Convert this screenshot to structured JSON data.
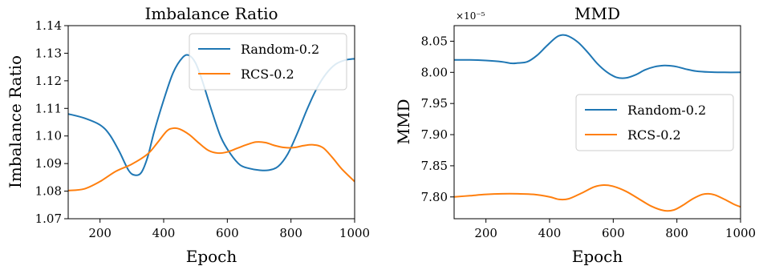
{
  "chart_data": [
    {
      "type": "line",
      "title": "Imbalance Ratio",
      "xlabel": "Epoch",
      "ylabel": "Imbalance Ratio",
      "xlim": [
        100,
        1000
      ],
      "ylim": [
        1.07,
        1.14
      ],
      "xticks": [
        200,
        400,
        600,
        800,
        1000
      ],
      "xtick_labels": [
        "200",
        "400",
        "600",
        "800",
        "1000"
      ],
      "yticks": [
        1.07,
        1.08,
        1.09,
        1.1,
        1.11,
        1.12,
        1.13,
        1.14
      ],
      "ytick_labels": [
        "1.07",
        "1.08",
        "1.09",
        "1.10",
        "1.11",
        "1.12",
        "1.13",
        "1.14"
      ],
      "legend_position": "top-right",
      "series": [
        {
          "name": "Random-0.2",
          "color": "#1f77b4",
          "x": [
            100,
            150,
            200,
            230,
            260,
            290,
            310,
            330,
            350,
            370,
            400,
            430,
            460,
            480,
            500,
            520,
            550,
            580,
            610,
            640,
            670,
            700,
            730,
            760,
            790,
            820,
            850,
            880,
            910,
            940,
            970,
            1000
          ],
          "y": [
            1.108,
            1.1065,
            1.104,
            1.1005,
            1.0945,
            1.0875,
            1.0858,
            1.0868,
            1.0925,
            1.1015,
            1.113,
            1.123,
            1.1285,
            1.1292,
            1.1265,
            1.1205,
            1.1095,
            1.0995,
            1.0935,
            1.0895,
            1.0882,
            1.0876,
            1.0876,
            1.089,
            1.0935,
            1.101,
            1.1095,
            1.117,
            1.1225,
            1.126,
            1.1275,
            1.128
          ]
        },
        {
          "name": "RCS-0.2",
          "color": "#ff7f0e",
          "x": [
            100,
            150,
            200,
            250,
            300,
            350,
            380,
            410,
            430,
            450,
            480,
            510,
            540,
            570,
            600,
            630,
            660,
            690,
            720,
            750,
            780,
            810,
            840,
            870,
            900,
            930,
            960,
            1000
          ],
          "y": [
            1.0802,
            1.0808,
            1.0835,
            1.0872,
            1.0898,
            1.0935,
            1.0975,
            1.1018,
            1.1028,
            1.1025,
            1.1005,
            1.0975,
            1.0948,
            1.0938,
            1.0942,
            1.0955,
            1.0968,
            1.0978,
            1.0976,
            1.0965,
            1.0958,
            1.0958,
            1.0965,
            1.0968,
            1.0958,
            1.0922,
            1.088,
            1.0835
          ]
        }
      ]
    },
    {
      "type": "line",
      "title": "MMD",
      "xlabel": "Epoch",
      "ylabel": "MMD",
      "y_offset_label": "×10⁻⁵",
      "xlim": [
        100,
        1000
      ],
      "ylim": [
        7.765,
        8.075
      ],
      "xticks": [
        200,
        400,
        600,
        800,
        1000
      ],
      "xtick_labels": [
        "200",
        "400",
        "600",
        "800",
        "1000"
      ],
      "yticks": [
        7.8,
        7.85,
        7.9,
        7.95,
        8.0,
        8.05
      ],
      "ytick_labels": [
        "7.80",
        "7.85",
        "7.90",
        "7.95",
        "8.00",
        "8.05"
      ],
      "legend_position": "center-right",
      "series": [
        {
          "name": "Random-0.2",
          "color": "#1f77b4",
          "x": [
            100,
            150,
            200,
            250,
            280,
            300,
            330,
            360,
            390,
            420,
            440,
            460,
            490,
            520,
            550,
            580,
            610,
            640,
            670,
            700,
            730,
            760,
            780,
            800,
            830,
            860,
            900,
            950,
            1000
          ],
          "y": [
            8.02,
            8.02,
            8.019,
            8.017,
            8.0145,
            8.015,
            8.017,
            8.027,
            8.042,
            8.056,
            8.06,
            8.058,
            8.048,
            8.032,
            8.014,
            8.0005,
            7.992,
            7.991,
            7.996,
            8.004,
            8.009,
            8.011,
            8.0105,
            8.009,
            8.005,
            8.002,
            8.0005,
            8.0,
            8.0
          ]
        },
        {
          "name": "RCS-0.2",
          "color": "#ff7f0e",
          "x": [
            100,
            150,
            200,
            250,
            300,
            350,
            400,
            430,
            460,
            500,
            540,
            570,
            600,
            640,
            680,
            720,
            760,
            790,
            820,
            850,
            880,
            900,
            920,
            950,
            980,
            1000
          ],
          "y": [
            7.8,
            7.802,
            7.804,
            7.805,
            7.805,
            7.804,
            7.8,
            7.796,
            7.797,
            7.806,
            7.816,
            7.819,
            7.817,
            7.809,
            7.797,
            7.785,
            7.778,
            7.779,
            7.787,
            7.797,
            7.804,
            7.805,
            7.803,
            7.796,
            7.788,
            7.784
          ]
        }
      ]
    }
  ]
}
